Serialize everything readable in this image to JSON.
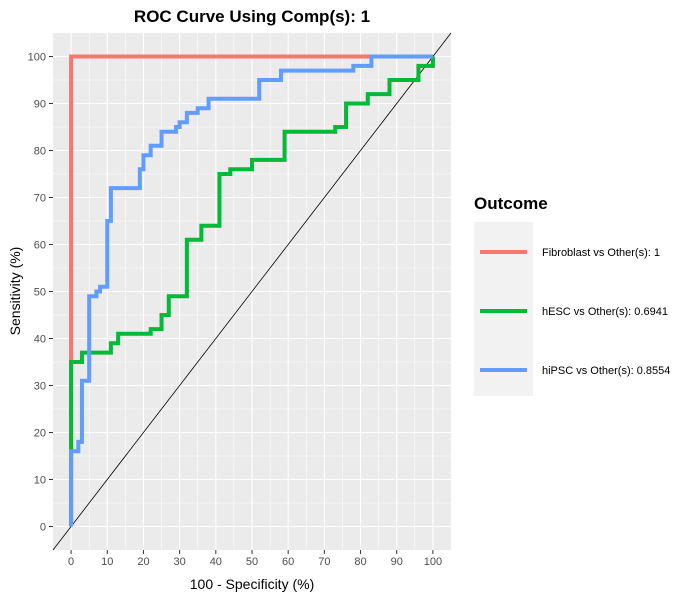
{
  "chart_data": {
    "type": "line",
    "title": "ROC Curve Using Comp(s): 1",
    "xlabel": "100 - Specificity (%)",
    "ylabel": "Sensitivity (%)",
    "xlim": [
      -5,
      105
    ],
    "ylim": [
      -5,
      105
    ],
    "xticks": [
      0,
      10,
      20,
      30,
      40,
      50,
      60,
      70,
      80,
      90,
      100
    ],
    "yticks": [
      0,
      10,
      20,
      30,
      40,
      50,
      60,
      70,
      80,
      90,
      100
    ],
    "grid": true,
    "legend": {
      "title": "Outcome",
      "position": "right"
    },
    "series": [
      {
        "name": "Fibroblast vs Other(s): 1",
        "color": "#F8766D",
        "x": [
          0,
          0,
          0,
          83,
          100
        ],
        "y": [
          0,
          35,
          100,
          100,
          100
        ]
      },
      {
        "name": "hESC vs Other(s): 0.6941",
        "color": "#00BA38",
        "x": [
          0,
          0,
          0,
          3,
          3,
          11,
          11,
          13,
          13,
          22,
          22,
          25,
          25,
          27,
          27,
          32,
          32,
          36,
          36,
          41,
          41,
          44,
          44,
          50,
          50,
          59,
          59,
          73,
          73,
          76,
          76,
          82,
          82,
          88,
          88,
          96,
          96,
          100,
          100
        ],
        "y": [
          0,
          18,
          35,
          35,
          37,
          37,
          39,
          39,
          41,
          41,
          42,
          42,
          45,
          45,
          49,
          49,
          61,
          61,
          64,
          64,
          75,
          75,
          76,
          76,
          78,
          78,
          84,
          84,
          85,
          85,
          90,
          90,
          92,
          92,
          95,
          95,
          98,
          98,
          100
        ]
      },
      {
        "name": "hiPSC vs Other(s): 0.8554",
        "color": "#619CFF",
        "x": [
          0,
          0,
          2,
          2,
          3,
          3,
          5,
          5,
          7,
          7,
          8,
          8,
          10,
          10,
          11,
          11,
          19,
          19,
          20,
          20,
          22,
          22,
          25,
          25,
          29,
          29,
          30,
          30,
          32,
          32,
          35,
          35,
          38,
          38,
          40,
          40,
          52,
          52,
          58,
          58,
          78,
          78,
          83,
          83,
          100
        ],
        "y": [
          0,
          16,
          16,
          18,
          18,
          31,
          31,
          49,
          49,
          50,
          50,
          51,
          51,
          65,
          65,
          72,
          72,
          76,
          76,
          79,
          79,
          81,
          81,
          84,
          84,
          85,
          85,
          86,
          86,
          88,
          88,
          89,
          89,
          91,
          91,
          91,
          91,
          95,
          95,
          97,
          97,
          98,
          98,
          100,
          100
        ]
      }
    ]
  }
}
